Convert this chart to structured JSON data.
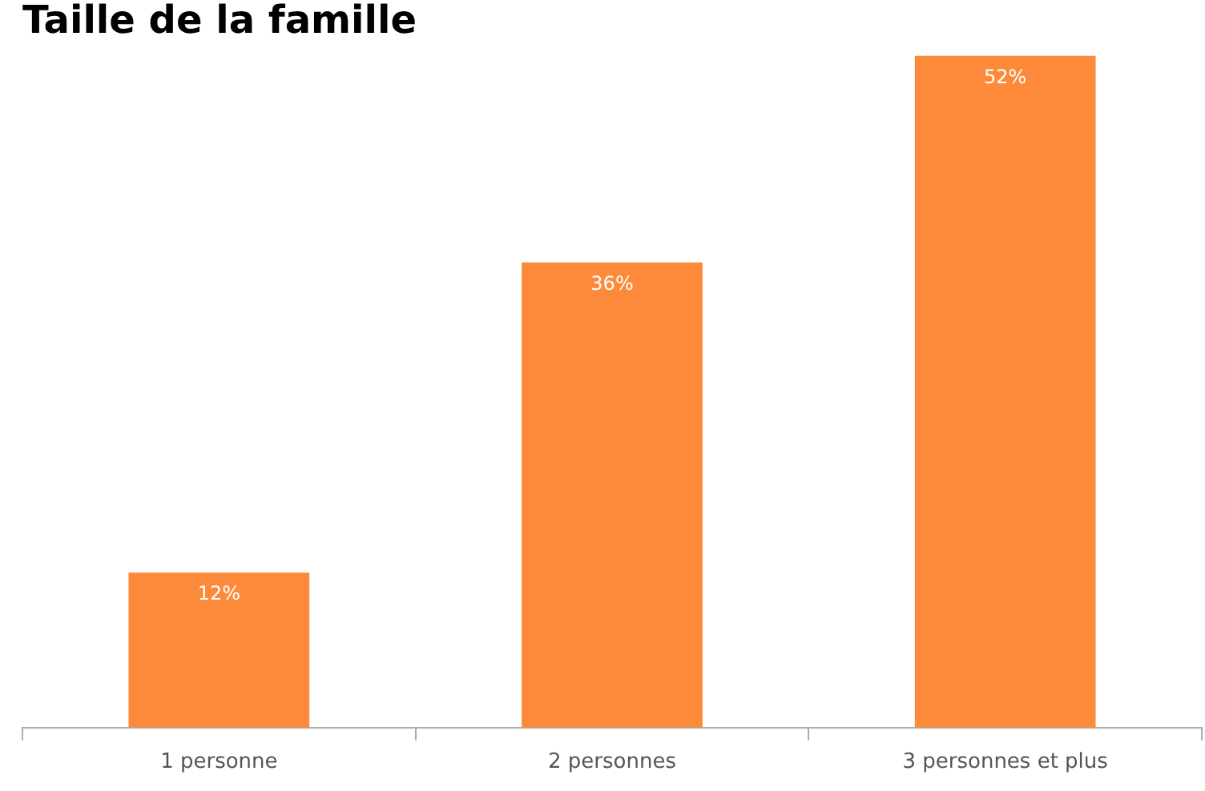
{
  "chart_data": {
    "type": "bar",
    "title": "Taille de la famille",
    "categories": [
      "1 personne",
      "2 personnes",
      "3 personnes et plus"
    ],
    "values": [
      12,
      36,
      52
    ],
    "value_labels": [
      "12%",
      "36%",
      "52%"
    ],
    "color": "#fd8a3a",
    "grid": false,
    "legend": false
  }
}
